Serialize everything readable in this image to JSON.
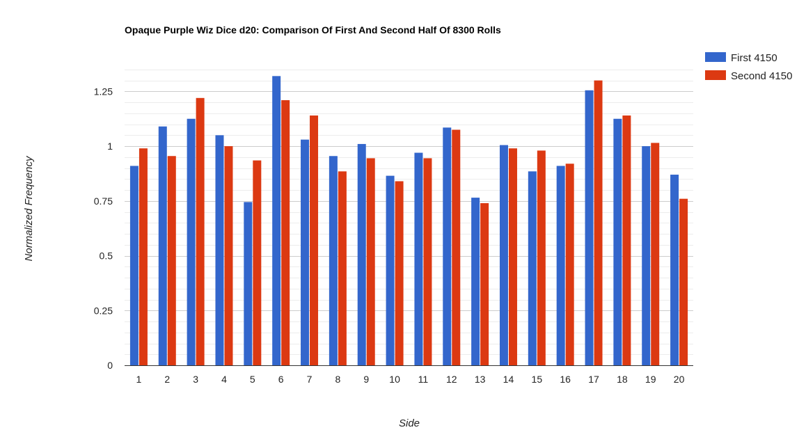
{
  "chart_data": {
    "type": "bar",
    "title": "Opaque Purple Wiz Dice d20: Comparison Of First And Second Half Of 8300 Rolls",
    "xlabel": "Side",
    "ylabel": "Normalized Frequency",
    "categories": [
      "1",
      "2",
      "3",
      "4",
      "5",
      "6",
      "7",
      "8",
      "9",
      "10",
      "11",
      "12",
      "13",
      "14",
      "15",
      "16",
      "17",
      "18",
      "19",
      "20"
    ],
    "series": [
      {
        "name": "First 4150",
        "color": "#3366cc",
        "values": [
          0.91,
          1.09,
          1.125,
          1.05,
          0.745,
          1.32,
          1.03,
          0.955,
          1.01,
          0.865,
          0.97,
          1.085,
          0.765,
          1.005,
          0.885,
          0.91,
          1.255,
          1.125,
          1.0,
          0.87
        ]
      },
      {
        "name": "Second 4150",
        "color": "#dc3912",
        "values": [
          0.99,
          0.955,
          1.22,
          1.0,
          0.935,
          1.21,
          1.14,
          0.885,
          0.945,
          0.84,
          0.945,
          1.075,
          0.74,
          0.99,
          0.98,
          0.92,
          1.3,
          1.14,
          1.015,
          0.76
        ]
      }
    ],
    "yticks": [
      "0",
      "0.25",
      "0.5",
      "0.75",
      "1",
      "1.25"
    ],
    "ylim": [
      0,
      1.375
    ],
    "grid": true,
    "legend_position": "right"
  }
}
